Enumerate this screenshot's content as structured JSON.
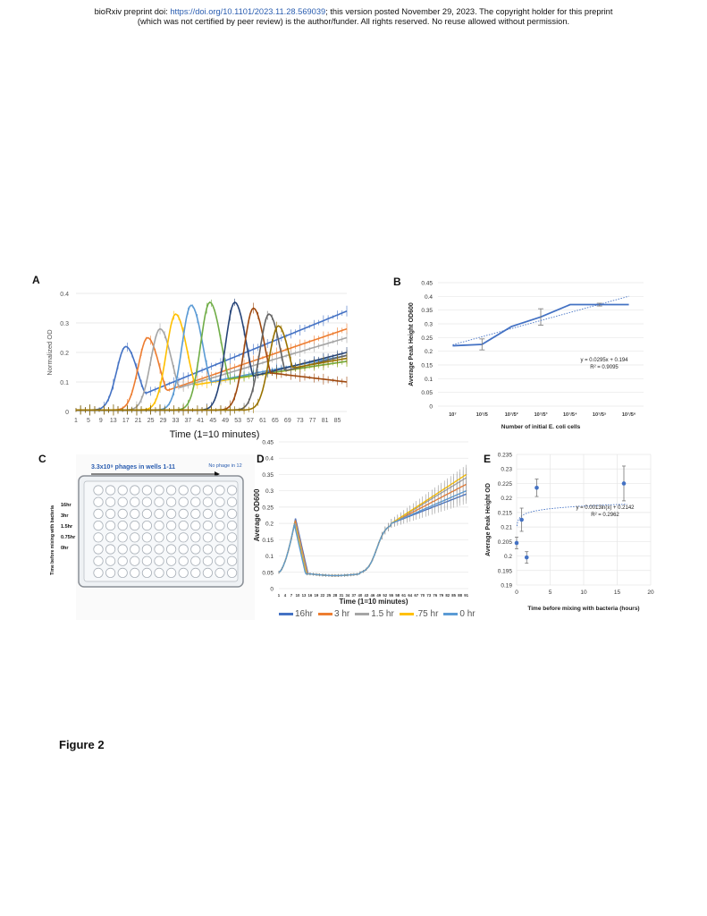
{
  "header": {
    "line1_pre": "bioRxiv preprint doi: ",
    "doi": "https://doi.org/10.1101/2023.11.28.569039",
    "line1_post": "; this version posted November 29, 2023. The copyright holder for this preprint",
    "line2": "(which was not certified by peer review) is the author/funder. All rights reserved. No reuse allowed without permission."
  },
  "figure_caption": "Figure 2",
  "panels": {
    "A": "A",
    "B": "B",
    "C": "C",
    "D": "D",
    "E": "E"
  },
  "panel_c": {
    "title": "3.3x10⁹ phages in wells 1-11",
    "no_phage": "No phage in 12",
    "ylabel": "Time before mixing with bacteria",
    "rows": [
      "16hr",
      "3hr",
      "1.5hr",
      "0.75hr",
      "0hr"
    ]
  },
  "colors": {
    "blue": "#4472c4",
    "orange": "#ed7d31",
    "gray": "#a5a5a5",
    "yellow": "#ffc000",
    "lightblue": "#5b9bd5",
    "green": "#70ad47",
    "navy": "#264478",
    "brown": "#9e480e",
    "darkgray": "#636363",
    "gold": "#997300"
  },
  "chart_data": [
    {
      "panel": "A",
      "type": "line",
      "xlabel": "Time (1=10 minutes)",
      "ylabel": "Normalized OD",
      "ylim": [
        0,
        0.4
      ],
      "yticks": [
        "0",
        "0.1",
        "0.2",
        "0.3",
        "0.4"
      ],
      "xticks": [
        "1",
        "5",
        "9",
        "13",
        "17",
        "21",
        "25",
        "29",
        "33",
        "37",
        "41",
        "45",
        "49",
        "53",
        "57",
        "61",
        "65",
        "69",
        "73",
        "77",
        "81",
        "85"
      ],
      "xlim": [
        1,
        88
      ],
      "series_peaks": [
        {
          "color": "blue",
          "peak_x": 17,
          "peak_y": 0.22,
          "end_y": 0.34
        },
        {
          "color": "orange",
          "peak_x": 24,
          "peak_y": 0.25,
          "end_y": 0.28
        },
        {
          "color": "gray",
          "peak_x": 28,
          "peak_y": 0.28,
          "end_y": 0.25
        },
        {
          "color": "yellow",
          "peak_x": 33,
          "peak_y": 0.33,
          "end_y": 0.17
        },
        {
          "color": "lightblue",
          "peak_x": 38,
          "peak_y": 0.36,
          "end_y": 0.19
        },
        {
          "color": "green",
          "peak_x": 44,
          "peak_y": 0.37,
          "end_y": 0.17
        },
        {
          "color": "navy",
          "peak_x": 52,
          "peak_y": 0.37,
          "end_y": 0.2
        },
        {
          "color": "brown",
          "peak_x": 58,
          "peak_y": 0.35,
          "end_y": 0.1
        },
        {
          "color": "darkgray",
          "peak_x": 63,
          "peak_y": 0.33,
          "end_y": 0.19
        },
        {
          "color": "gold",
          "peak_x": 66,
          "peak_y": 0.29,
          "end_y": 0.18
        }
      ]
    },
    {
      "panel": "B",
      "type": "line",
      "xlabel": "Number of initial E. coli cells",
      "ylabel": "Average Peak Height OD600",
      "ylim": [
        0,
        0.45
      ],
      "yticks": [
        "0",
        "0.05",
        "0.1",
        "0.15",
        "0.2",
        "0.25",
        "0.3",
        "0.35",
        "0.4",
        "0.45"
      ],
      "categories": [
        "10⁷",
        "10⁷/5",
        "10⁷/5²",
        "10⁷/5³",
        "10⁷/5⁴",
        "10⁷/5⁵",
        "10⁷/5⁶"
      ],
      "values": [
        0.22,
        0.225,
        0.29,
        0.325,
        0.37,
        0.37,
        0.37
      ],
      "errors": [
        0,
        0.02,
        0,
        0.03,
        0,
        0.005,
        0
      ],
      "trend_eq": "y = 0.0295x + 0.194",
      "trend_r2": "R² = 0.9095"
    },
    {
      "panel": "D",
      "type": "line",
      "xlabel": "Time (1=10 minutes)",
      "ylabel": "Average OD600",
      "ylim": [
        0,
        0.45
      ],
      "yticks": [
        "0",
        "0.05",
        "0.1",
        "0.15",
        "0.2",
        "0.25",
        "0.3",
        "0.35",
        "0.4",
        "0.45"
      ],
      "xticks": [
        "1",
        "4",
        "7",
        "10",
        "13",
        "16",
        "19",
        "22",
        "25",
        "28",
        "31",
        "34",
        "37",
        "40",
        "43",
        "46",
        "49",
        "52",
        "55",
        "58",
        "61",
        "64",
        "67",
        "70",
        "73",
        "76",
        "79",
        "82",
        "85",
        "88",
        "91"
      ],
      "xlim": [
        1,
        92
      ],
      "series": [
        {
          "name": "16hr",
          "color": "#4472c4",
          "end_y": 0.29
        },
        {
          "name": "3 hr",
          "color": "#ed7d31",
          "end_y": 0.32
        },
        {
          "name": "1.5 hr",
          "color": "#a5a5a5",
          "end_y": 0.34
        },
        {
          "name": ".75 hr",
          "color": "#ffc000",
          "end_y": 0.35
        },
        {
          "name": "0 hr",
          "color": "#5b9bd5",
          "end_y": 0.3
        }
      ]
    },
    {
      "panel": "E",
      "type": "scatter",
      "xlabel": "Time before mixing with bacteria (hours)",
      "ylabel": "Average Peak Height OD",
      "xlim": [
        0,
        20
      ],
      "ylim": [
        0.19,
        0.235
      ],
      "xticks": [
        "0",
        "5",
        "10",
        "15",
        "20"
      ],
      "yticks": [
        "0.19",
        "0.195",
        "0.2",
        "0.205",
        "0.21",
        "0.215",
        "0.22",
        "0.225",
        "0.23",
        "0.235"
      ],
      "points": [
        {
          "x": 0,
          "y": 0.2045,
          "err": 0.002
        },
        {
          "x": 0.75,
          "y": 0.2125,
          "err": 0.004
        },
        {
          "x": 1.5,
          "y": 0.1995,
          "err": 0.002
        },
        {
          "x": 3,
          "y": 0.2235,
          "err": 0.003
        },
        {
          "x": 16,
          "y": 0.225,
          "err": 0.006
        }
      ],
      "trend_eq": "y = 0.0013ln(x) + 0.2142",
      "trend_r2": "R² = 0.2962"
    }
  ]
}
